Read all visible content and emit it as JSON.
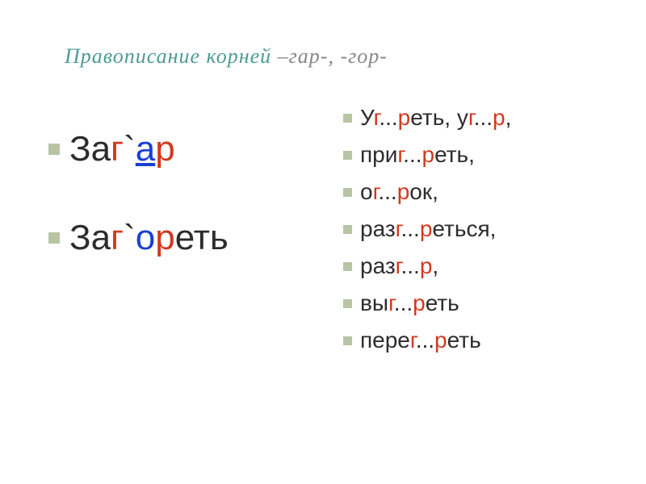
{
  "colors": {
    "black": "#2c2c2c",
    "red": "#d13a1e",
    "blue": "#1a3fd4",
    "teal": "#4d9b94",
    "gray": "#888888",
    "bullet": "#b8c4a4",
    "background": "#ffffff"
  },
  "typography": {
    "title_fontsize": 26,
    "example_fontsize": 44,
    "exercise_fontsize": 28,
    "title_style": "italic",
    "title_family": "Times New Roman",
    "body_family": "Arial"
  },
  "title": {
    "parts": [
      {
        "text": "Правописание    корней      ",
        "color": "teal"
      },
      {
        "text": "–гар-,  -гор-",
        "color": "gray"
      }
    ]
  },
  "examples": [
    {
      "parts": [
        {
          "text": "За",
          "color": "black"
        },
        {
          "text": "г",
          "color": "red"
        },
        {
          "text": "`",
          "color": "black"
        },
        {
          "text": "а",
          "color": "blue",
          "underline": true
        },
        {
          "text": "р",
          "color": "red"
        }
      ]
    },
    {
      "parts": [
        {
          "text": "За",
          "color": "black"
        },
        {
          "text": "г",
          "color": "red"
        },
        {
          "text": "`",
          "color": "black"
        },
        {
          "text": "о",
          "color": "blue"
        },
        {
          "text": "р",
          "color": "red"
        },
        {
          "text": "еть",
          "color": "black"
        }
      ]
    }
  ],
  "exercises": [
    {
      "parts": [
        {
          "text": "У",
          "color": "black"
        },
        {
          "text": "г",
          "color": "red"
        },
        {
          "text": "...",
          "color": "black"
        },
        {
          "text": "р",
          "color": "red"
        },
        {
          "text": "еть, у",
          "color": "black"
        },
        {
          "text": "г",
          "color": "red"
        },
        {
          "text": "...",
          "color": "black"
        },
        {
          "text": "р",
          "color": "red"
        },
        {
          "text": ",",
          "color": "black"
        }
      ]
    },
    {
      "parts": [
        {
          "text": "при",
          "color": "black"
        },
        {
          "text": "г",
          "color": "red"
        },
        {
          "text": "...",
          "color": "black"
        },
        {
          "text": "р",
          "color": "red"
        },
        {
          "text": "еть,",
          "color": "black"
        }
      ]
    },
    {
      "parts": [
        {
          "text": "о",
          "color": "black"
        },
        {
          "text": "г",
          "color": "red"
        },
        {
          "text": "...",
          "color": "black"
        },
        {
          "text": "р",
          "color": "red"
        },
        {
          "text": "ок,",
          "color": "black"
        }
      ]
    },
    {
      "parts": [
        {
          "text": "раз",
          "color": "black"
        },
        {
          "text": "г",
          "color": "red"
        },
        {
          "text": "...",
          "color": "black"
        },
        {
          "text": "р",
          "color": "red"
        },
        {
          "text": "еться,",
          "color": "black"
        }
      ]
    },
    {
      "parts": [
        {
          "text": "раз",
          "color": "black"
        },
        {
          "text": "г",
          "color": "red"
        },
        {
          "text": "...",
          "color": "black"
        },
        {
          "text": "р",
          "color": "red"
        },
        {
          "text": ",",
          "color": "black"
        }
      ]
    },
    {
      "parts": [
        {
          "text": "вы",
          "color": "black"
        },
        {
          "text": "г",
          "color": "red"
        },
        {
          "text": "...",
          "color": "black"
        },
        {
          "text": "р",
          "color": "red"
        },
        {
          "text": "еть",
          "color": "black"
        }
      ]
    },
    {
      "parts": [
        {
          "text": "пере",
          "color": "black"
        },
        {
          "text": "г",
          "color": "red"
        },
        {
          "text": "...",
          "color": "black"
        },
        {
          "text": "р",
          "color": "red"
        },
        {
          "text": "еть",
          "color": "black"
        }
      ]
    }
  ]
}
